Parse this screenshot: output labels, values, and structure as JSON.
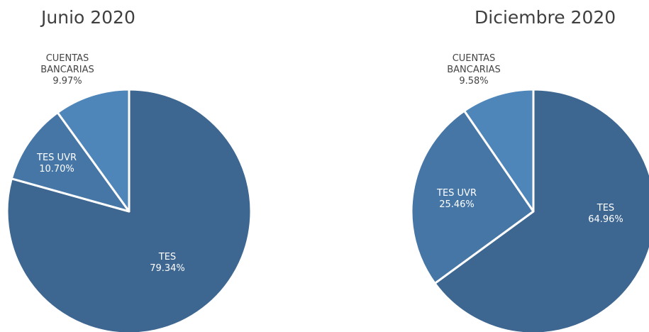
{
  "chart_data": [
    {
      "type": "pie",
      "title": "Junio 2020",
      "slices": [
        {
          "label": "TES",
          "value": 79.34,
          "display": "79.34%",
          "color": "#3d6691"
        },
        {
          "label": "TES UVR",
          "value": 10.7,
          "display": "10.70%",
          "color": "#4676a6"
        },
        {
          "label": "CUENTAS BANCARIAS",
          "value": 9.97,
          "display": "9.97%",
          "color": "#4f86ba"
        }
      ]
    },
    {
      "type": "pie",
      "title": "Diciembre 2020",
      "slices": [
        {
          "label": "TES",
          "value": 64.96,
          "display": "64.96%",
          "color": "#3d6691"
        },
        {
          "label": "TES UVR",
          "value": 25.46,
          "display": "25.46%",
          "color": "#4676a6"
        },
        {
          "label": "CUENTAS BANCARIAS",
          "value": 9.58,
          "display": "9.58%",
          "color": "#4f86ba"
        }
      ]
    }
  ]
}
